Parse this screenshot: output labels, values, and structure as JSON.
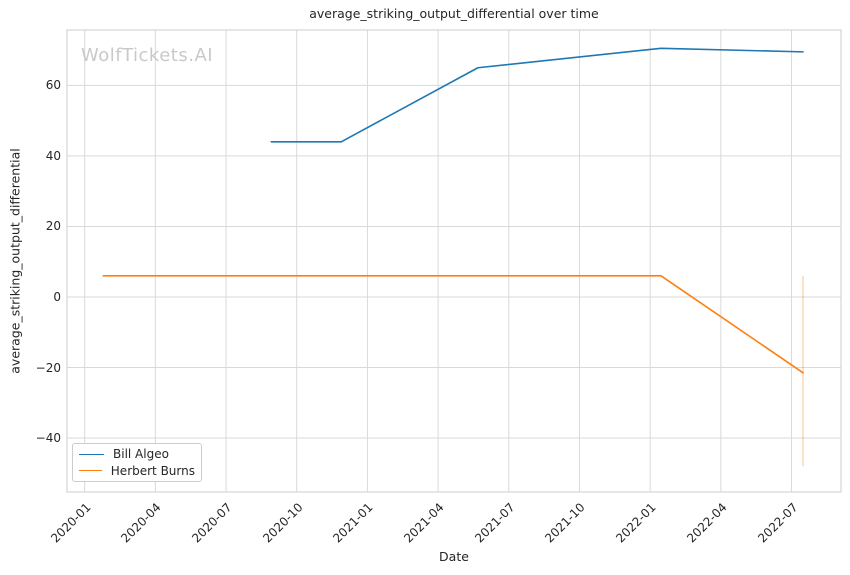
{
  "watermark": "WolfTickets.AI",
  "colors": {
    "series_blue": "#1f77b4",
    "series_orange": "#ff7f0e",
    "grid": "#d9d9d9",
    "spine": "#d4d4d4",
    "text": "#262626",
    "watermark": "#c9c9c9",
    "background": "#ffffff"
  },
  "chart_data": {
    "type": "line",
    "title": "average_striking_output_differential over time",
    "xlabel": "Date",
    "ylabel": "average_striking_output_differential",
    "x_unit": "months since 2020-01",
    "xlim": [
      -0.75,
      32.1
    ],
    "ylim": [
      -55.3,
      75.7
    ],
    "grid": true,
    "legend_position": "lower left",
    "x_ticks": [
      {
        "x": 0,
        "label": "2020-01"
      },
      {
        "x": 3,
        "label": "2020-04"
      },
      {
        "x": 6,
        "label": "2020-07"
      },
      {
        "x": 9,
        "label": "2020-10"
      },
      {
        "x": 12,
        "label": "2021-01"
      },
      {
        "x": 15,
        "label": "2021-04"
      },
      {
        "x": 18,
        "label": "2021-07"
      },
      {
        "x": 21,
        "label": "2021-10"
      },
      {
        "x": 24,
        "label": "2022-01"
      },
      {
        "x": 27,
        "label": "2022-04"
      },
      {
        "x": 30,
        "label": "2022-07"
      }
    ],
    "y_ticks": [
      {
        "y": 60,
        "label": "60"
      },
      {
        "y": 40,
        "label": "40"
      },
      {
        "y": 20,
        "label": "20"
      },
      {
        "y": 0,
        "label": "0"
      },
      {
        "y": -20,
        "label": "−20"
      },
      {
        "y": -40,
        "label": "−40"
      }
    ],
    "series": [
      {
        "name": "Bill Algeo",
        "color": "#1f77b4",
        "points": [
          {
            "date": "2020-08-29",
            "x": 7.92,
            "y": 44
          },
          {
            "date": "2020-11-28",
            "x": 10.89,
            "y": 44
          },
          {
            "date": "2021-05-22",
            "x": 16.69,
            "y": 65
          },
          {
            "date": "2022-01-15",
            "x": 24.46,
            "y": 70.5
          },
          {
            "date": "2022-07-16",
            "x": 30.49,
            "y": 69.5
          }
        ]
      },
      {
        "name": "Herbert Burns",
        "color": "#ff7f0e",
        "points": [
          {
            "date": "2020-01-25",
            "x": 0.79,
            "y": 6
          },
          {
            "date": "2022-01-15",
            "x": 24.46,
            "y": 6
          },
          {
            "date": "2022-07-16",
            "x": 30.49,
            "y": -21.5
          }
        ],
        "error_bar": {
          "date": "2022-07-16",
          "x": 30.49,
          "y_top": 6,
          "y_bottom": -48
        }
      }
    ]
  }
}
